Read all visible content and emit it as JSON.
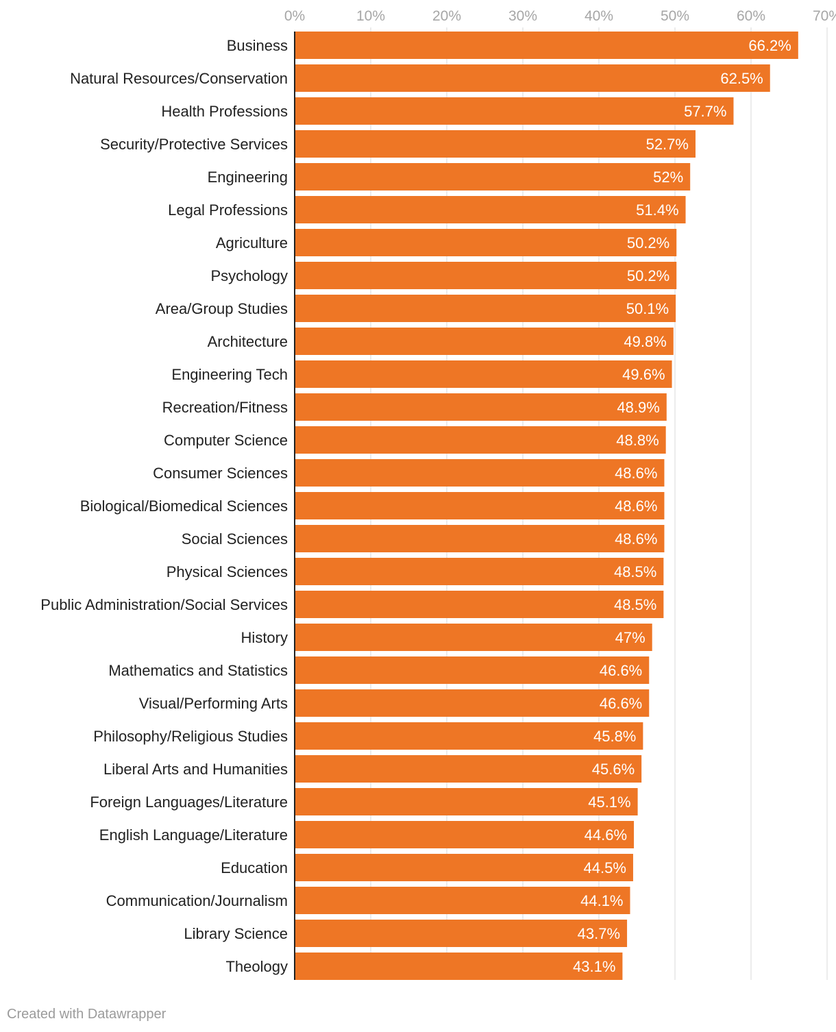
{
  "chart_data": {
    "type": "bar",
    "orientation": "horizontal",
    "categories": [
      "Business",
      "Natural Resources/Conservation",
      "Health Professions",
      "Security/Protective Services",
      "Engineering",
      "Legal Professions",
      "Agriculture",
      "Psychology",
      "Area/Group Studies",
      "Architecture",
      "Engineering Tech",
      "Recreation/Fitness",
      "Computer Science",
      "Consumer Sciences",
      "Biological/Biomedical Sciences",
      "Social Sciences",
      "Physical Sciences",
      "Public Administration/Social Services",
      "History",
      "Mathematics and Statistics",
      "Visual/Performing Arts",
      "Philosophy/Religious Studies",
      "Liberal Arts and Humanities",
      "Foreign Languages/Literature",
      "English Language/Literature",
      "Education",
      "Communication/Journalism",
      "Library Science",
      "Theology"
    ],
    "values": [
      66.2,
      62.5,
      57.7,
      52.7,
      52,
      51.4,
      50.2,
      50.2,
      50.1,
      49.8,
      49.6,
      48.9,
      48.8,
      48.6,
      48.6,
      48.6,
      48.5,
      48.5,
      47,
      46.6,
      46.6,
      45.8,
      45.6,
      45.1,
      44.6,
      44.5,
      44.1,
      43.7,
      43.1
    ],
    "value_labels": [
      "66.2%",
      "62.5%",
      "57.7%",
      "52.7%",
      "52%",
      "51.4%",
      "50.2%",
      "50.2%",
      "50.1%",
      "49.8%",
      "49.6%",
      "48.9%",
      "48.8%",
      "48.6%",
      "48.6%",
      "48.6%",
      "48.5%",
      "48.5%",
      "47%",
      "46.6%",
      "46.6%",
      "45.8%",
      "45.6%",
      "45.1%",
      "44.6%",
      "44.5%",
      "44.1%",
      "43.7%",
      "43.1%"
    ],
    "xlim": [
      0,
      70
    ],
    "x_ticks": [
      0,
      10,
      20,
      30,
      40,
      50,
      60,
      70
    ],
    "x_tick_labels": [
      "0%",
      "10%",
      "20%",
      "30%",
      "40%",
      "50%",
      "60%",
      "70%"
    ],
    "title": "",
    "xlabel": "",
    "ylabel": "",
    "grid": true,
    "legend": "none",
    "bar_color": "#ee7625",
    "grid_color": "#e6e6e6",
    "axis_color": "#222222"
  },
  "footer": {
    "credit": "Created with Datawrapper"
  }
}
